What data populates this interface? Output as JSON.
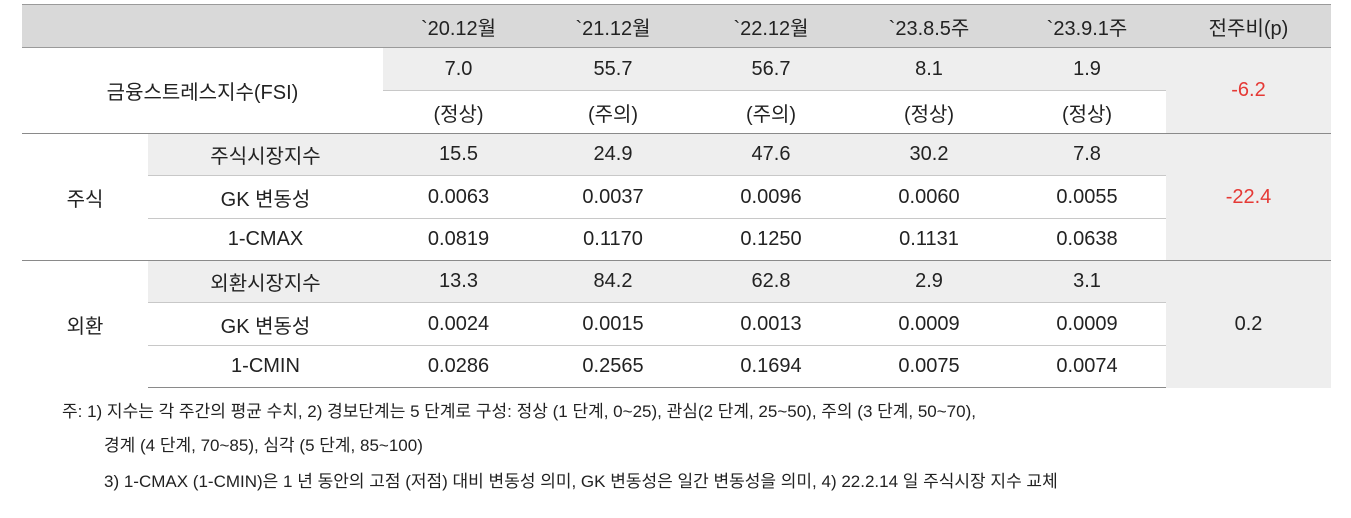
{
  "table": {
    "columns": [
      "`20.12월",
      "`21.12월",
      "`22.12월",
      "`23.8.5주",
      "`23.9.1주",
      "전주비(p)"
    ],
    "sections": [
      {
        "label": "금융스트레스지수(FSI)",
        "change": "-6.2",
        "change_color": "#e53935",
        "rows": [
          {
            "values": [
              "7.0",
              "55.7",
              "56.7",
              "8.1",
              "1.9"
            ]
          },
          {
            "values": [
              "(정상)",
              "(주의)",
              "(주의)",
              "(정상)",
              "(정상)"
            ]
          }
        ]
      },
      {
        "label": "주식",
        "change": "-22.4",
        "change_color": "#e53935",
        "rows": [
          {
            "label": "주식시장지수",
            "values": [
              "15.5",
              "24.9",
              "47.6",
              "30.2",
              "7.8"
            ]
          },
          {
            "label": "GK 변동성",
            "values": [
              "0.0063",
              "0.0037",
              "0.0096",
              "0.0060",
              "0.0055"
            ]
          },
          {
            "label": "1-CMAX",
            "values": [
              "0.0819",
              "0.1170",
              "0.1250",
              "0.1131",
              "0.0638"
            ]
          }
        ]
      },
      {
        "label": "외환",
        "change": "0.2",
        "change_color": "#222222",
        "rows": [
          {
            "label": "외환시장지수",
            "values": [
              "13.3",
              "84.2",
              "62.8",
              "2.9",
              "3.1"
            ]
          },
          {
            "label": "GK 변동성",
            "values": [
              "0.0024",
              "0.0015",
              "0.0013",
              "0.0009",
              "0.0009"
            ]
          },
          {
            "label": "1-CMIN",
            "values": [
              "0.0286",
              "0.2565",
              "0.1694",
              "0.0075",
              "0.0074"
            ]
          }
        ]
      }
    ]
  },
  "notes": [
    "주: 1) 지수는 각 주간의 평균 수치, 2) 경보단계는 5 단계로 구성: 정상 (1 단계, 0~25), 관심(2 단계, 25~50), 주의 (3 단계, 50~70),",
    "경계 (4 단계, 70~85), 심각 (5 단계, 85~100)",
    "3) 1-CMAX (1-CMIN)은 1 년 동안의 고점 (저점) 대비 변동성 의미, GK 변동성은 일간 변동성을 의미, 4) 22.2.14 일 주식시장 지수 교체"
  ]
}
